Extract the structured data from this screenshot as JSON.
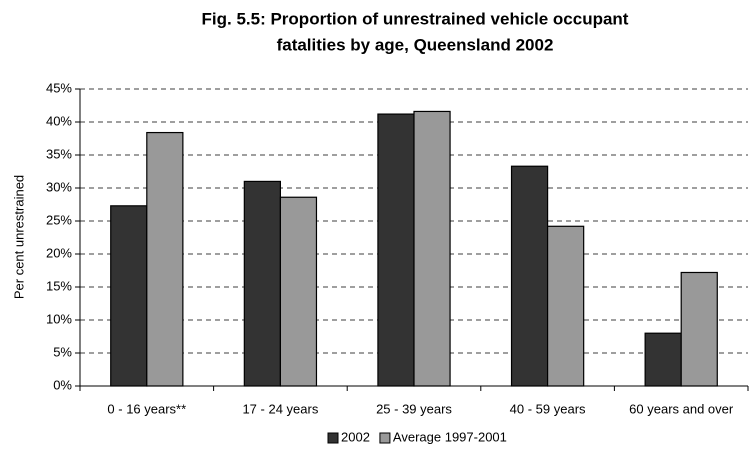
{
  "chart_data": {
    "type": "bar",
    "title": [
      "Fig. 5.5: Proportion of unrestrained vehicle occupant",
      "fatalities by age, Queensland 2002"
    ],
    "y_label": "Per cent unrestrained",
    "categories": [
      "0 - 16 years**",
      "17 - 24 years",
      "25 - 39 years",
      "40 - 59 years",
      "60 years and over"
    ],
    "series": [
      {
        "name": "2002",
        "color": "#333333",
        "values": [
          27.3,
          31.0,
          41.2,
          33.3,
          8.0
        ]
      },
      {
        "name": "Average 1997-2001",
        "color": "#999999",
        "values": [
          38.4,
          28.6,
          41.6,
          24.2,
          17.2
        ]
      }
    ],
    "ylim": [
      0,
      45
    ],
    "yticks": [
      {
        "value": 0,
        "label": "0%"
      },
      {
        "value": 5,
        "label": "5%"
      },
      {
        "value": 10,
        "label": "10%"
      },
      {
        "value": 15,
        "label": "15%"
      },
      {
        "value": 20,
        "label": "20%"
      },
      {
        "value": 25,
        "label": "25%"
      },
      {
        "value": 30,
        "label": "30%"
      },
      {
        "value": 35,
        "label": "35%"
      },
      {
        "value": 40,
        "label": "40%"
      },
      {
        "value": 45,
        "label": "45%"
      }
    ],
    "grid": true,
    "legend": "bottom"
  }
}
